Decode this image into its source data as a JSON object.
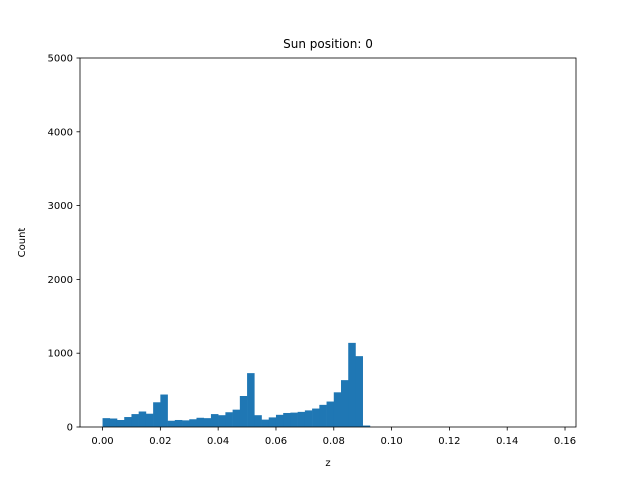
{
  "chart_data": {
    "type": "bar",
    "title": "Sun position: 0",
    "xlabel": "z",
    "ylabel": "Count",
    "xlim": [
      -0.0078,
      0.1638
    ],
    "ylim": [
      0,
      5000
    ],
    "xticks": [
      0.0,
      0.02,
      0.04,
      0.06,
      0.08,
      0.1,
      0.12,
      0.14,
      0.16
    ],
    "xtick_labels": [
      "0.00",
      "0.02",
      "0.04",
      "0.06",
      "0.08",
      "0.10",
      "0.12",
      "0.14",
      "0.16"
    ],
    "yticks": [
      0,
      1000,
      2000,
      3000,
      4000,
      5000
    ],
    "ytick_labels": [
      "0",
      "1000",
      "2000",
      "3000",
      "4000",
      "5000"
    ],
    "bin_start": 0.0,
    "bin_width": 0.0025,
    "values": [
      120,
      115,
      95,
      135,
      175,
      210,
      180,
      335,
      440,
      85,
      95,
      90,
      105,
      125,
      120,
      175,
      160,
      200,
      235,
      420,
      730,
      160,
      100,
      130,
      165,
      190,
      195,
      205,
      225,
      250,
      300,
      345,
      470,
      635,
      1140,
      960,
      20
    ],
    "bar_color": "#1f77b4",
    "grid": false,
    "legend": "none"
  }
}
